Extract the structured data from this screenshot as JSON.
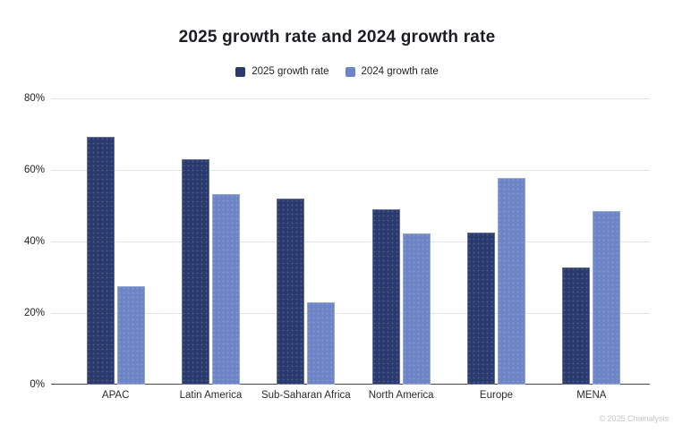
{
  "title": "2025 growth rate and 2024 growth rate",
  "watermark": "© 2025 Chainalysis",
  "colors": {
    "series_2025": "#2b3a6e",
    "series_2024": "#6d85c6",
    "gridline": "#e3e3e3",
    "axis_line": "#454545",
    "title_text": "#1c1c22",
    "axis_text": "#1f1f1f",
    "watermark_text": "#c5c5c5",
    "background": "#ffffff"
  },
  "chart_data": {
    "type": "bar",
    "title": "2025 growth rate and 2024 growth rate",
    "categories": [
      "APAC",
      "Latin America",
      "Sub-Saharan Africa",
      "North America",
      "Europe",
      "MENA"
    ],
    "series": [
      {
        "name": "2025 growth rate",
        "color": "#2b3a6e",
        "values": [
          69.2,
          63.0,
          52.1,
          49.0,
          42.4,
          32.7
        ]
      },
      {
        "name": "2024 growth rate",
        "color": "#6d85c6",
        "values": [
          27.4,
          53.3,
          23.1,
          42.2,
          57.7,
          48.4
        ]
      }
    ],
    "xlabel": "",
    "ylabel": "",
    "ylim": [
      0,
      80
    ],
    "yticks": [
      "80%",
      "60%",
      "40%",
      "20%",
      "0%"
    ],
    "ytick_values": [
      80,
      60,
      40,
      20,
      0
    ],
    "grid": true,
    "legend_position": "top-center"
  }
}
